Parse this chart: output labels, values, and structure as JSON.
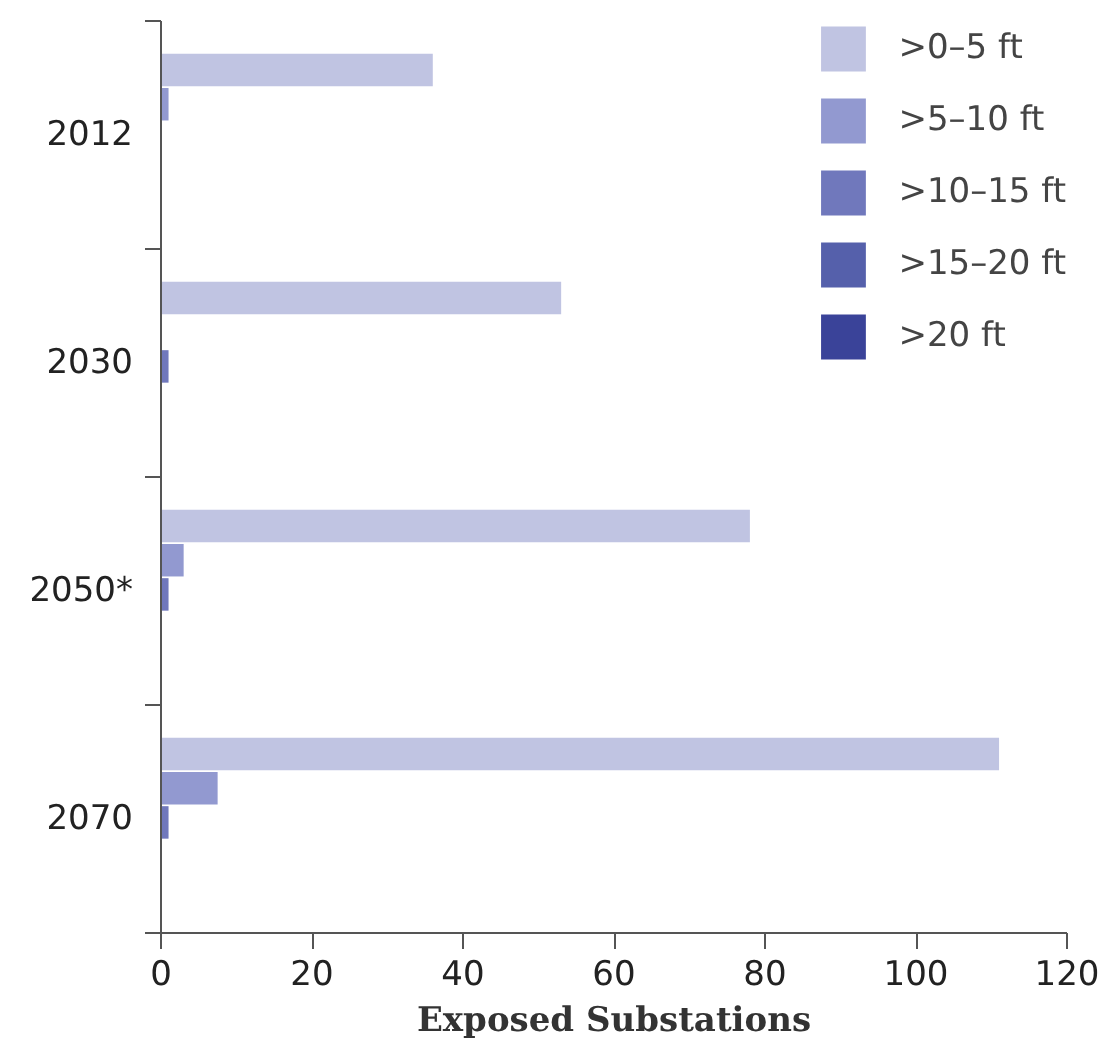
{
  "chart_data": {
    "type": "bar",
    "orientation": "horizontal",
    "categories": [
      "2012",
      "2030",
      "2050*",
      "2070"
    ],
    "series": [
      {
        "name": ">0–5 ft",
        "color": "#c0c4e2",
        "values": [
          36,
          53,
          78,
          111
        ]
      },
      {
        "name": ">5–10 ft",
        "color": "#9299d0",
        "values": [
          1,
          null,
          3,
          7.5
        ]
      },
      {
        "name": ">10–15 ft",
        "color": "#7078bc",
        "values": [
          null,
          1,
          1,
          1
        ]
      },
      {
        "name": ">15–20 ft",
        "color": "#5560ab",
        "values": [
          null,
          null,
          null,
          null
        ]
      },
      {
        "name": ">20 ft",
        "color": "#3a4399",
        "values": [
          null,
          null,
          null,
          null
        ]
      }
    ],
    "xlim": [
      0,
      120
    ],
    "xticks": [
      0,
      20,
      40,
      60,
      80,
      100,
      120
    ],
    "xlabel": "Exposed Substations",
    "legend": "top right",
    "grid": false
  }
}
